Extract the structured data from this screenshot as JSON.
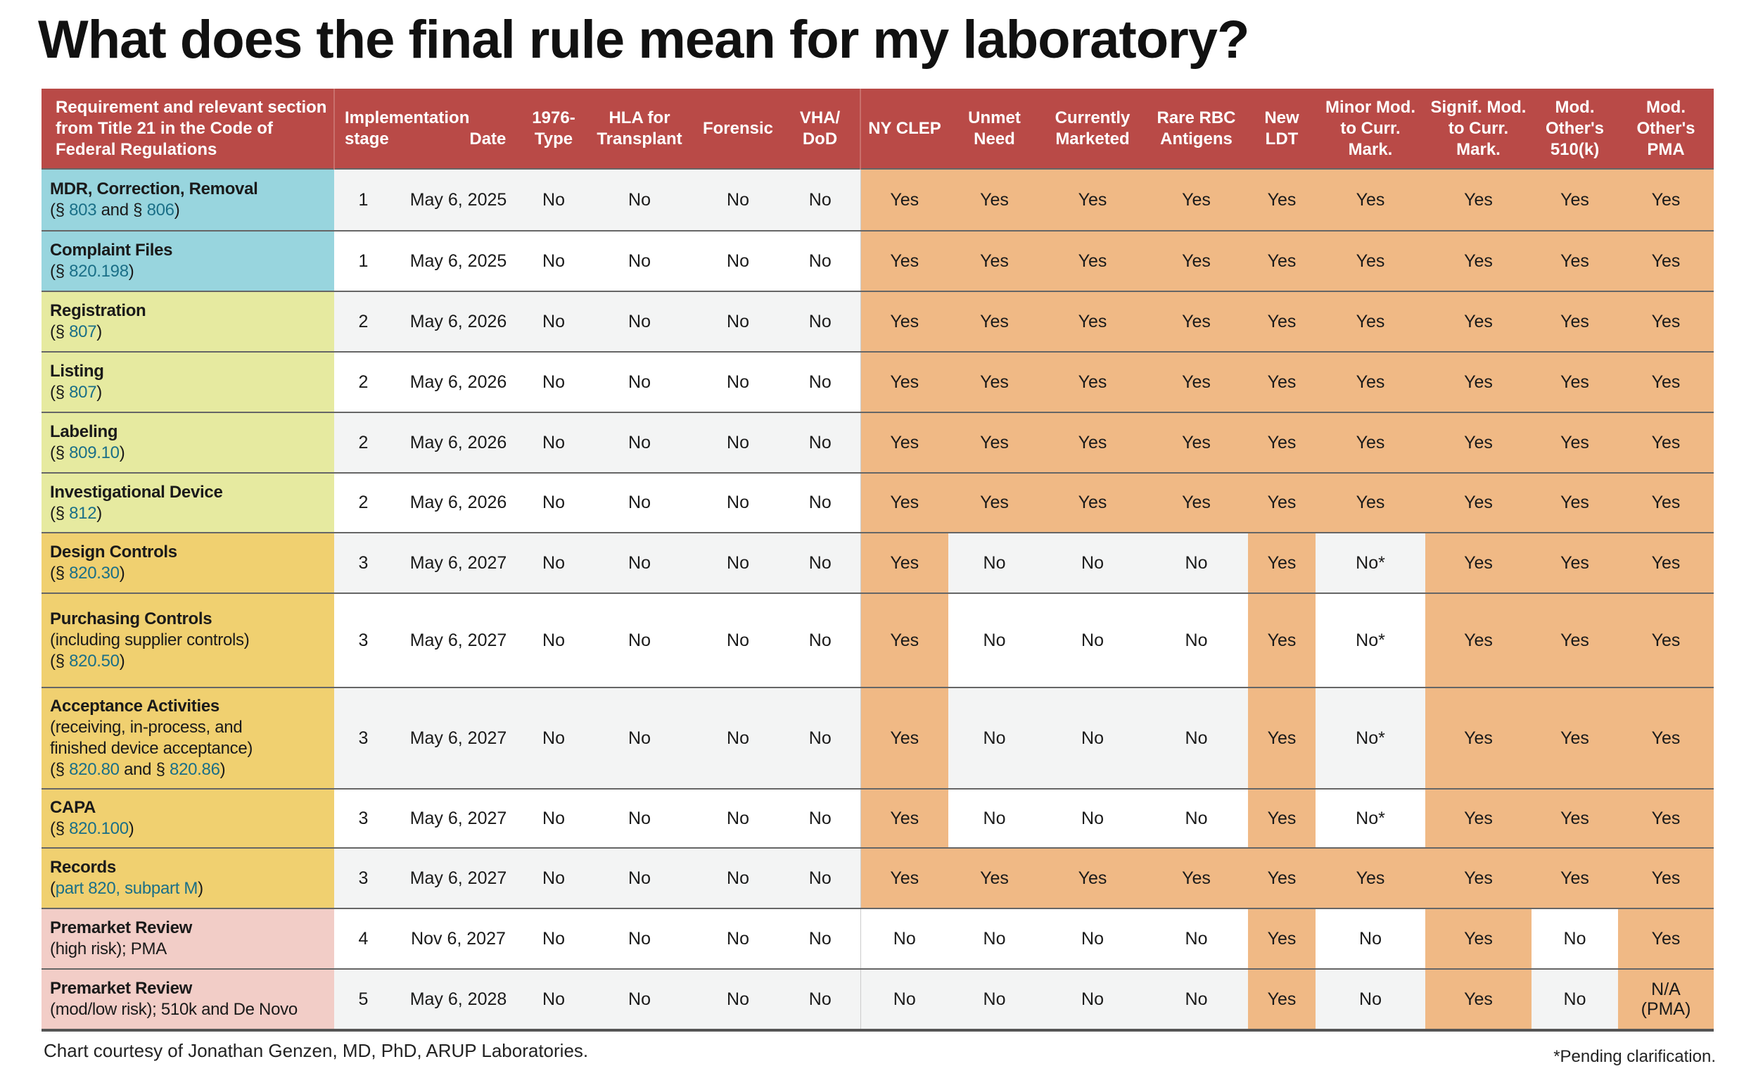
{
  "title": "What does the final rule mean for my laboratory?",
  "colors": {
    "header": "#b94a47",
    "stage1": "#98d5de",
    "stage2": "#e6eaa0",
    "stage3": "#f0d070",
    "premarket": "#f2cdc7",
    "yes": "#f0b985",
    "link": "#1a6f87"
  },
  "headers": [
    "Requirement and relevant section from Title 21 in the Code of Federal Regulations",
    "Implementation stage",
    "Date",
    "1976-Type",
    "HLA for Transplant",
    "Forensic",
    "VHA/ DoD",
    "NY CLEP",
    "Unmet Need",
    "Currently Marketed",
    "Rare RBC Antigens",
    "New LDT",
    "Minor Mod. to Curr. Mark.",
    "Signif. Mod. to Curr. Mark.",
    "Mod. Other's 510(k)",
    "Mod. Other's PMA"
  ],
  "rows": [
    {
      "title": "MDR, Correction, Removal",
      "detail": [
        {
          "t": "(§ "
        },
        {
          "t": "803",
          "link": true
        },
        {
          "t": " and § "
        },
        {
          "t": "806",
          "link": true
        },
        {
          "t": ")"
        }
      ],
      "group": "blue",
      "stage": "1",
      "date": "May 6, 2025",
      "values": [
        "No",
        "No",
        "No",
        "No",
        "Yes",
        "Yes",
        "Yes",
        "Yes",
        "Yes",
        "Yes",
        "Yes",
        "Yes",
        "Yes"
      ]
    },
    {
      "title": "Complaint Files",
      "detail": [
        {
          "t": "(§ "
        },
        {
          "t": "820.198",
          "link": true
        },
        {
          "t": ")"
        }
      ],
      "group": "blue",
      "stage": "1",
      "date": "May 6, 2025",
      "values": [
        "No",
        "No",
        "No",
        "No",
        "Yes",
        "Yes",
        "Yes",
        "Yes",
        "Yes",
        "Yes",
        "Yes",
        "Yes",
        "Yes"
      ]
    },
    {
      "title": "Registration",
      "detail": [
        {
          "t": "(§ "
        },
        {
          "t": "807",
          "link": true
        },
        {
          "t": ")"
        }
      ],
      "group": "green",
      "stage": "2",
      "date": "May 6, 2026",
      "values": [
        "No",
        "No",
        "No",
        "No",
        "Yes",
        "Yes",
        "Yes",
        "Yes",
        "Yes",
        "Yes",
        "Yes",
        "Yes",
        "Yes"
      ]
    },
    {
      "title": "Listing",
      "detail": [
        {
          "t": "(§ "
        },
        {
          "t": "807",
          "link": true
        },
        {
          "t": ")"
        }
      ],
      "group": "green",
      "stage": "2",
      "date": "May 6, 2026",
      "values": [
        "No",
        "No",
        "No",
        "No",
        "Yes",
        "Yes",
        "Yes",
        "Yes",
        "Yes",
        "Yes",
        "Yes",
        "Yes",
        "Yes"
      ]
    },
    {
      "title": "Labeling",
      "detail": [
        {
          "t": "(§ "
        },
        {
          "t": "809.10",
          "link": true
        },
        {
          "t": ")"
        }
      ],
      "group": "green",
      "stage": "2",
      "date": "May 6, 2026",
      "values": [
        "No",
        "No",
        "No",
        "No",
        "Yes",
        "Yes",
        "Yes",
        "Yes",
        "Yes",
        "Yes",
        "Yes",
        "Yes",
        "Yes"
      ]
    },
    {
      "title": "Investigational Device",
      "detail": [
        {
          "t": "(§ "
        },
        {
          "t": "812",
          "link": true
        },
        {
          "t": ")"
        }
      ],
      "group": "green",
      "stage": "2",
      "date": "May 6, 2026",
      "values": [
        "No",
        "No",
        "No",
        "No",
        "Yes",
        "Yes",
        "Yes",
        "Yes",
        "Yes",
        "Yes",
        "Yes",
        "Yes",
        "Yes"
      ]
    },
    {
      "title": "Design Controls",
      "detail": [
        {
          "t": "(§ "
        },
        {
          "t": "820.30",
          "link": true
        },
        {
          "t": ")"
        }
      ],
      "group": "yellow",
      "stage": "3",
      "date": "May 6, 2027",
      "values": [
        "No",
        "No",
        "No",
        "No",
        "Yes",
        "No",
        "No",
        "No",
        "Yes",
        "No*",
        "Yes",
        "Yes",
        "Yes"
      ]
    },
    {
      "title": "Purchasing Controls",
      "detail": [
        {
          "t": "(including supplier controls)\n(§ "
        },
        {
          "t": "820.50",
          "link": true
        },
        {
          "t": ")"
        }
      ],
      "group": "yellow",
      "stage": "3",
      "date": "May 6, 2027",
      "values": [
        "No",
        "No",
        "No",
        "No",
        "Yes",
        "No",
        "No",
        "No",
        "Yes",
        "No*",
        "Yes",
        "Yes",
        "Yes"
      ]
    },
    {
      "title": "Acceptance Activities",
      "detail": [
        {
          "t": "(receiving, in-process, and\nfinished device acceptance)\n(§ "
        },
        {
          "t": "820.80",
          "link": true
        },
        {
          "t": " and § "
        },
        {
          "t": "820.86",
          "link": true
        },
        {
          "t": ")"
        }
      ],
      "group": "yellow",
      "stage": "3",
      "date": "May 6, 2027",
      "values": [
        "No",
        "No",
        "No",
        "No",
        "Yes",
        "No",
        "No",
        "No",
        "Yes",
        "No*",
        "Yes",
        "Yes",
        "Yes"
      ]
    },
    {
      "title": "CAPA",
      "detail": [
        {
          "t": "(§ "
        },
        {
          "t": "820.100",
          "link": true
        },
        {
          "t": ")"
        }
      ],
      "group": "yellow",
      "stage": "3",
      "date": "May 6, 2027",
      "values": [
        "No",
        "No",
        "No",
        "No",
        "Yes",
        "No",
        "No",
        "No",
        "Yes",
        "No*",
        "Yes",
        "Yes",
        "Yes"
      ]
    },
    {
      "title": "Records",
      "detail": [
        {
          "t": "("
        },
        {
          "t": "part 820, subpart M",
          "link": true
        },
        {
          "t": ")"
        }
      ],
      "group": "yellow",
      "stage": "3",
      "date": "May 6, 2027",
      "values": [
        "No",
        "No",
        "No",
        "No",
        "Yes",
        "Yes",
        "Yes",
        "Yes",
        "Yes",
        "Yes",
        "Yes",
        "Yes",
        "Yes"
      ]
    },
    {
      "title": "Premarket Review",
      "detail": [
        {
          "t": "(high risk); PMA"
        }
      ],
      "group": "pink",
      "stage": "4",
      "date": "Nov 6, 2027",
      "values": [
        "No",
        "No",
        "No",
        "No",
        "No",
        "No",
        "No",
        "No",
        "Yes",
        "No",
        "Yes",
        "No",
        "Yes"
      ]
    },
    {
      "title": "Premarket Review",
      "detail": [
        {
          "t": "(mod/low risk); 510k and De Novo"
        }
      ],
      "group": "pink",
      "stage": "5",
      "date": "May 6, 2028",
      "values": [
        "No",
        "No",
        "No",
        "No",
        "No",
        "No",
        "No",
        "No",
        "Yes",
        "No",
        "Yes",
        "No",
        "N/A (PMA)"
      ]
    }
  ],
  "footer": {
    "credit": "Chart courtesy of Jonathan Genzen, MD, PhD, ARUP Laboratories.",
    "note": "*Pending clarification."
  }
}
